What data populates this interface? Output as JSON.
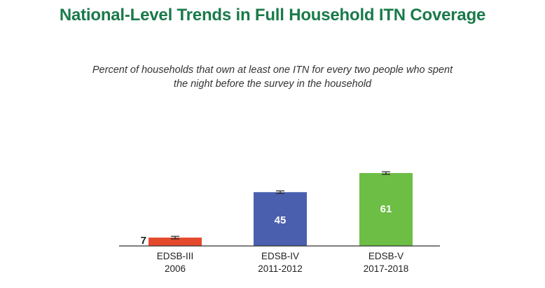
{
  "title": "National-Level Trends in Full Household ITN Coverage",
  "subtitle_lines": [
    "Percent of households that own at least one ITN for every two people who spent",
    "the night before the survey in the household"
  ],
  "colors": {
    "title": "#1a7a4a",
    "bar_1": "#e5492b",
    "bar_2": "#4a5fae",
    "bar_3": "#6cbe45",
    "axis": "#333333"
  },
  "chart_data": {
    "type": "bar",
    "title": "National-Level Trends in Full Household ITN Coverage",
    "subtitle": "Percent of households that own at least one ITN for every two people who spent the night before the survey in the household",
    "categories": [
      {
        "name": "EDSB-III",
        "period": "2006"
      },
      {
        "name": "EDSB-IV",
        "period": "2011-2012"
      },
      {
        "name": "EDSB-V",
        "period": "2017-2018"
      }
    ],
    "values": [
      7,
      45,
      61
    ],
    "value_labels": [
      "7",
      "45",
      "61"
    ],
    "error_bars": true,
    "ylim": [
      0,
      100
    ],
    "grid": false,
    "legend": "none",
    "xlabel": "",
    "ylabel": ""
  }
}
